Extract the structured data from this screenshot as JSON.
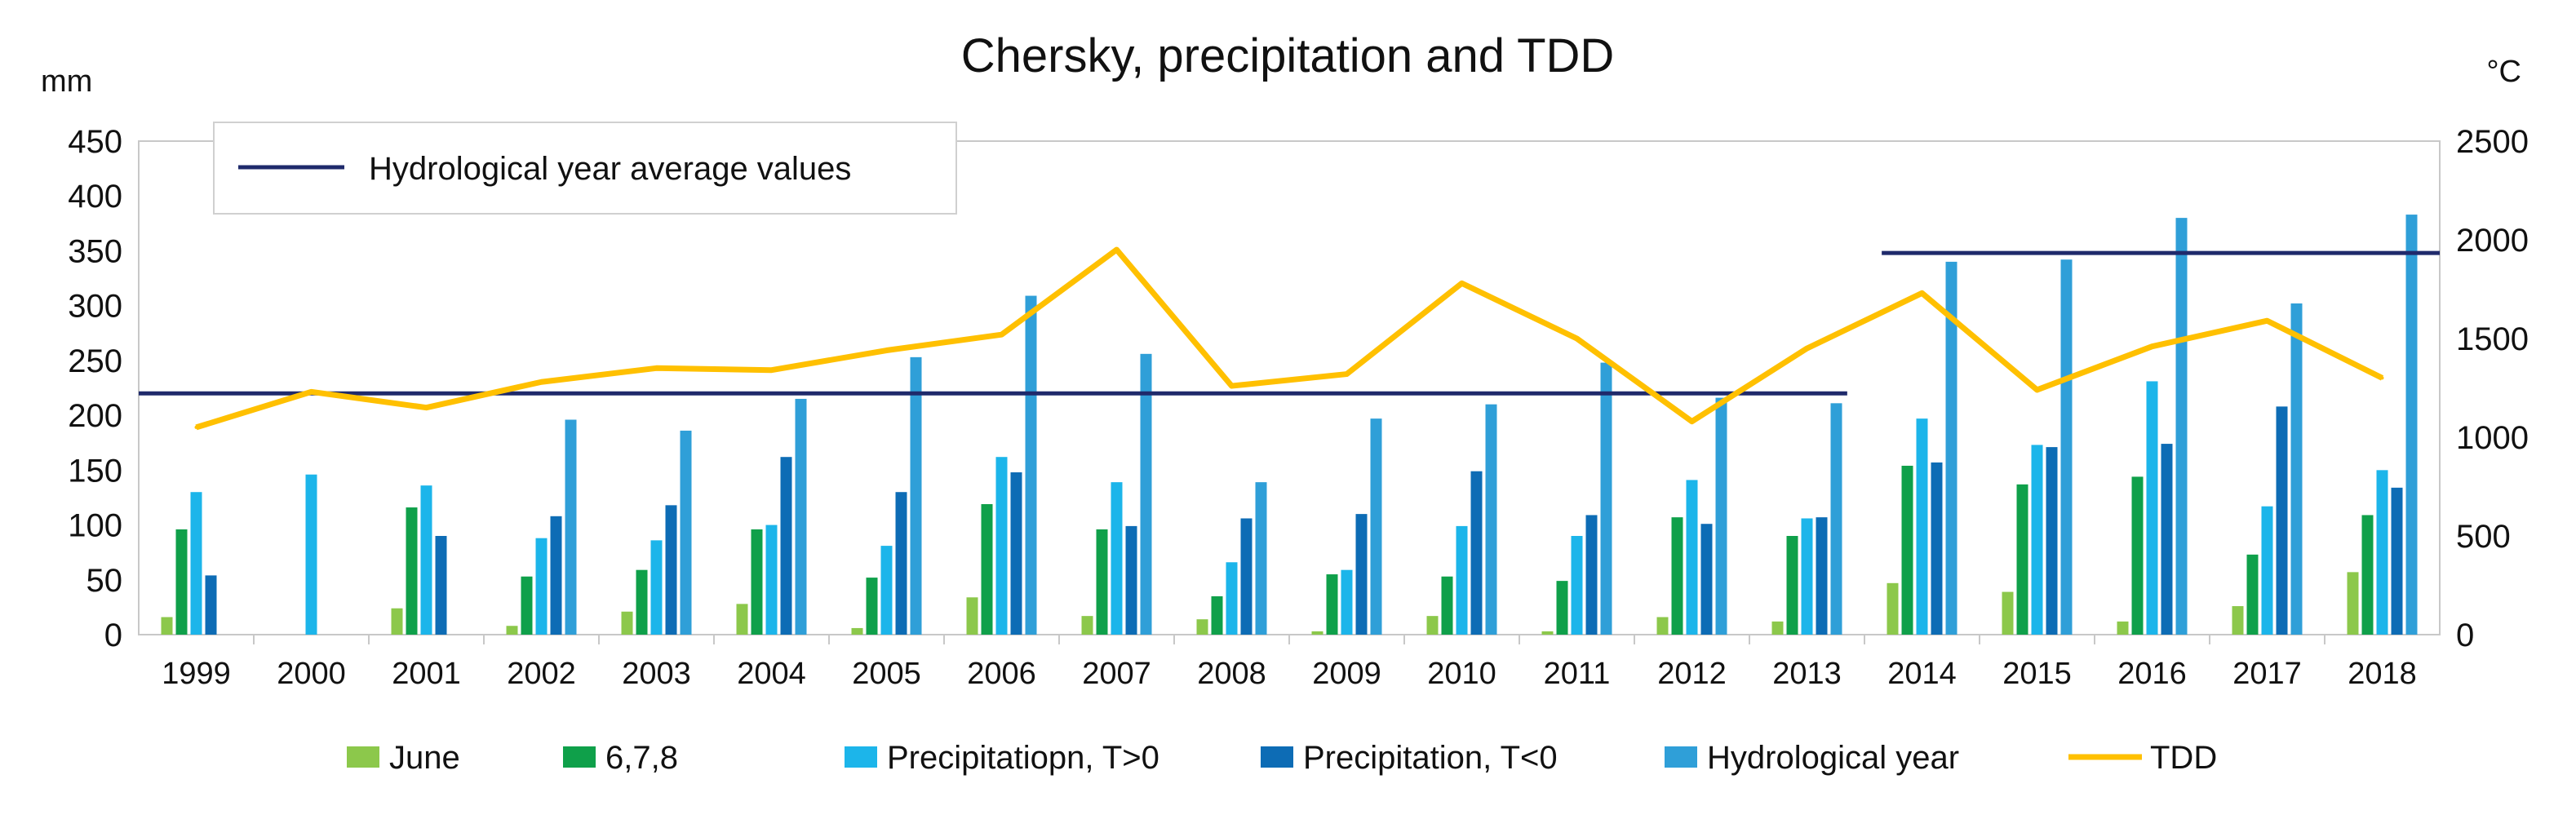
{
  "chart_data": {
    "type": "bar+line",
    "title": "Chersky, precipitation and TDD",
    "y_left_unit": "mm",
    "y_right_unit": "°C",
    "y_left_lim": [
      0,
      450
    ],
    "y_left_ticks": [
      "0",
      "50",
      "100",
      "150",
      "200",
      "250",
      "300",
      "350",
      "400",
      "450"
    ],
    "y_right_lim": [
      0,
      2500
    ],
    "y_right_ticks": [
      "0",
      "500",
      "1000",
      "1500",
      "2000",
      "2500"
    ],
    "categories": [
      "1999",
      "2000",
      "2001",
      "2002",
      "2003",
      "2004",
      "2005",
      "2006",
      "2007",
      "2008",
      "2009",
      "2010",
      "2011",
      "2012",
      "2013",
      "2014",
      "2015",
      "2016",
      "2017",
      "2018"
    ],
    "series": [
      {
        "name": "June",
        "color": "#8cc84b",
        "axis": "left",
        "values": [
          16,
          0,
          24,
          8,
          21,
          28,
          6,
          34,
          17,
          14,
          3,
          17,
          3,
          16,
          12,
          47,
          39,
          12,
          26,
          57
        ]
      },
      {
        "name": "6,7,8",
        "color": "#0fa04a",
        "axis": "left",
        "values": [
          96,
          0,
          116,
          53,
          59,
          96,
          52,
          119,
          96,
          35,
          55,
          53,
          49,
          107,
          90,
          154,
          137,
          144,
          73,
          109
        ]
      },
      {
        "name": "Precipitatiopn, T>0",
        "color": "#1cb5ea",
        "axis": "left",
        "values": [
          130,
          146,
          136,
          88,
          86,
          100,
          81,
          162,
          139,
          66,
          59,
          99,
          90,
          141,
          106,
          197,
          173,
          231,
          117,
          150
        ]
      },
      {
        "name": "Precipitation, T<0",
        "color": "#0d6cb5",
        "axis": "left",
        "values": [
          54,
          0,
          90,
          108,
          118,
          162,
          130,
          148,
          99,
          106,
          110,
          149,
          109,
          101,
          107,
          157,
          171,
          174,
          208,
          134
        ]
      },
      {
        "name": "Hydrological year",
        "color": "#2f9fd8",
        "axis": "left",
        "values": [
          0,
          0,
          0,
          196,
          186,
          215,
          253,
          309,
          256,
          139,
          197,
          210,
          248,
          216,
          211,
          340,
          342,
          380,
          302,
          383
        ]
      },
      {
        "name": "TDD",
        "type": "line",
        "color": "#ffc000",
        "axis": "right",
        "values": [
          1050,
          1230,
          1150,
          1280,
          1350,
          1340,
          1440,
          1520,
          1950,
          1260,
          1320,
          1780,
          1500,
          1080,
          1450,
          1730,
          1240,
          1460,
          1590,
          1300
        ]
      }
    ],
    "average_lines": {
      "label": "Hydrological year average values",
      "color": "#1f2a6b",
      "segments": [
        {
          "from": "1999",
          "to": "2013",
          "value": 220
        },
        {
          "from": "2014",
          "to": "2018",
          "value": 348
        }
      ]
    },
    "legend_position": "bottom"
  }
}
